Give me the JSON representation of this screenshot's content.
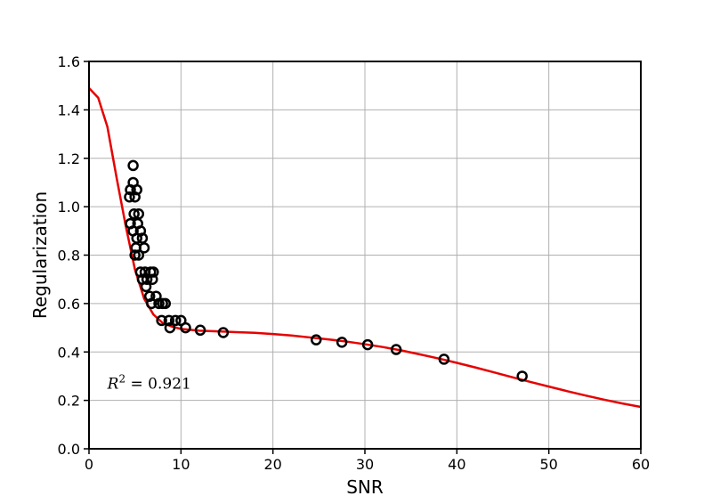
{
  "chart_data": {
    "type": "scatter",
    "title": "",
    "xlabel": "SNR",
    "ylabel": "Regularization",
    "xlim": [
      0,
      60
    ],
    "ylim": [
      0,
      1.6
    ],
    "xticks": [
      0,
      10,
      20,
      30,
      40,
      50,
      60
    ],
    "yticks": [
      0.0,
      0.2,
      0.4,
      0.6,
      0.8,
      1.0,
      1.2,
      1.4,
      1.6
    ],
    "xtick_labels": [
      "0",
      "10",
      "20",
      "30",
      "40",
      "50",
      "60"
    ],
    "ytick_labels": [
      "0.0",
      "0.2",
      "0.4",
      "0.6",
      "0.8",
      "1.0",
      "1.2",
      "1.4",
      "1.6"
    ],
    "grid": true,
    "annotation": {
      "r2_label": "R",
      "r2_exponent": "2",
      "r2_value": " = 0.921",
      "x": 2.0,
      "y": 0.27
    },
    "series": [
      {
        "type": "scatter",
        "marker": "open-circle",
        "color": "#000000",
        "points": [
          [
            4.8,
            1.17
          ],
          [
            4.8,
            1.1
          ],
          [
            4.5,
            1.07
          ],
          [
            5.2,
            1.07
          ],
          [
            4.4,
            1.04
          ],
          [
            5.0,
            1.04
          ],
          [
            4.9,
            0.97
          ],
          [
            5.4,
            0.97
          ],
          [
            4.5,
            0.93
          ],
          [
            5.3,
            0.93
          ],
          [
            4.8,
            0.9
          ],
          [
            5.6,
            0.9
          ],
          [
            5.2,
            0.87
          ],
          [
            5.8,
            0.87
          ],
          [
            5.1,
            0.83
          ],
          [
            6.0,
            0.83
          ],
          [
            5.0,
            0.8
          ],
          [
            5.4,
            0.8
          ],
          [
            5.6,
            0.73
          ],
          [
            6.1,
            0.73
          ],
          [
            6.7,
            0.73
          ],
          [
            7.0,
            0.73
          ],
          [
            5.8,
            0.7
          ],
          [
            6.3,
            0.7
          ],
          [
            6.9,
            0.7
          ],
          [
            6.2,
            0.67
          ],
          [
            6.6,
            0.63
          ],
          [
            7.3,
            0.63
          ],
          [
            6.8,
            0.6
          ],
          [
            7.6,
            0.6
          ],
          [
            8.0,
            0.6
          ],
          [
            8.3,
            0.6
          ],
          [
            7.9,
            0.53
          ],
          [
            8.7,
            0.53
          ],
          [
            9.4,
            0.53
          ],
          [
            10.0,
            0.53
          ],
          [
            8.8,
            0.5
          ],
          [
            10.5,
            0.5
          ],
          [
            12.1,
            0.49
          ],
          [
            14.6,
            0.48
          ],
          [
            24.7,
            0.45
          ],
          [
            27.5,
            0.44
          ],
          [
            30.3,
            0.43
          ],
          [
            33.4,
            0.41
          ],
          [
            38.6,
            0.37
          ],
          [
            47.1,
            0.3
          ]
        ]
      },
      {
        "type": "line",
        "color": "#e60000",
        "points": [
          [
            0,
            1.49
          ],
          [
            1,
            1.45
          ],
          [
            2,
            1.33
          ],
          [
            3,
            1.12
          ],
          [
            4,
            0.92
          ],
          [
            5,
            0.74
          ],
          [
            6,
            0.62
          ],
          [
            7,
            0.555
          ],
          [
            8,
            0.52
          ],
          [
            9,
            0.505
          ],
          [
            10,
            0.495
          ],
          [
            12,
            0.488
          ],
          [
            14,
            0.485
          ],
          [
            16,
            0.482
          ],
          [
            18,
            0.479
          ],
          [
            20,
            0.474
          ],
          [
            22,
            0.468
          ],
          [
            24,
            0.46
          ],
          [
            26,
            0.452
          ],
          [
            28,
            0.443
          ],
          [
            30,
            0.432
          ],
          [
            32,
            0.42
          ],
          [
            34,
            0.406
          ],
          [
            36,
            0.39
          ],
          [
            38,
            0.373
          ],
          [
            40,
            0.355
          ],
          [
            42,
            0.336
          ],
          [
            44,
            0.316
          ],
          [
            46,
            0.296
          ],
          [
            48,
            0.276
          ],
          [
            50,
            0.257
          ],
          [
            52,
            0.238
          ],
          [
            54,
            0.22
          ],
          [
            56,
            0.203
          ],
          [
            58,
            0.187
          ],
          [
            60,
            0.173
          ]
        ]
      }
    ]
  }
}
